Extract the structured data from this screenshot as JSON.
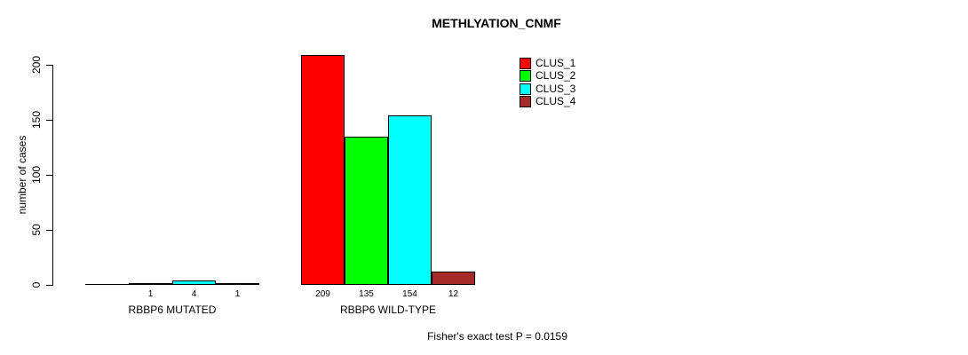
{
  "chart_data": {
    "type": "bar",
    "title": "METHLYATION_CNMF",
    "ylabel": "number of cases",
    "xlabel": "",
    "categories": [
      "RBBP6 MUTATED",
      "RBBP6 WILD-TYPE"
    ],
    "series": [
      {
        "name": "CLUS_1",
        "color": "#ff0000",
        "values": [
          0,
          209
        ]
      },
      {
        "name": "CLUS_2",
        "color": "#00ff00",
        "values": [
          1,
          135
        ]
      },
      {
        "name": "CLUS_3",
        "color": "#00ffff",
        "values": [
          4,
          154
        ]
      },
      {
        "name": "CLUS_4",
        "color": "#a52a2a",
        "values": [
          1,
          12
        ]
      }
    ],
    "bar_value_labels": [
      [
        "",
        "1",
        "4",
        "1"
      ],
      [
        "209",
        "135",
        "154",
        "12"
      ]
    ],
    "yticks": [
      0,
      50,
      100,
      150,
      200
    ],
    "ylim": [
      0,
      209
    ],
    "grid": false,
    "legend_position": "top-right",
    "annotation": "Fisher's exact test P = 0.0159"
  },
  "colors": {
    "background": "#ffffff",
    "axis": "#000000",
    "bar_outline": "#000000"
  }
}
